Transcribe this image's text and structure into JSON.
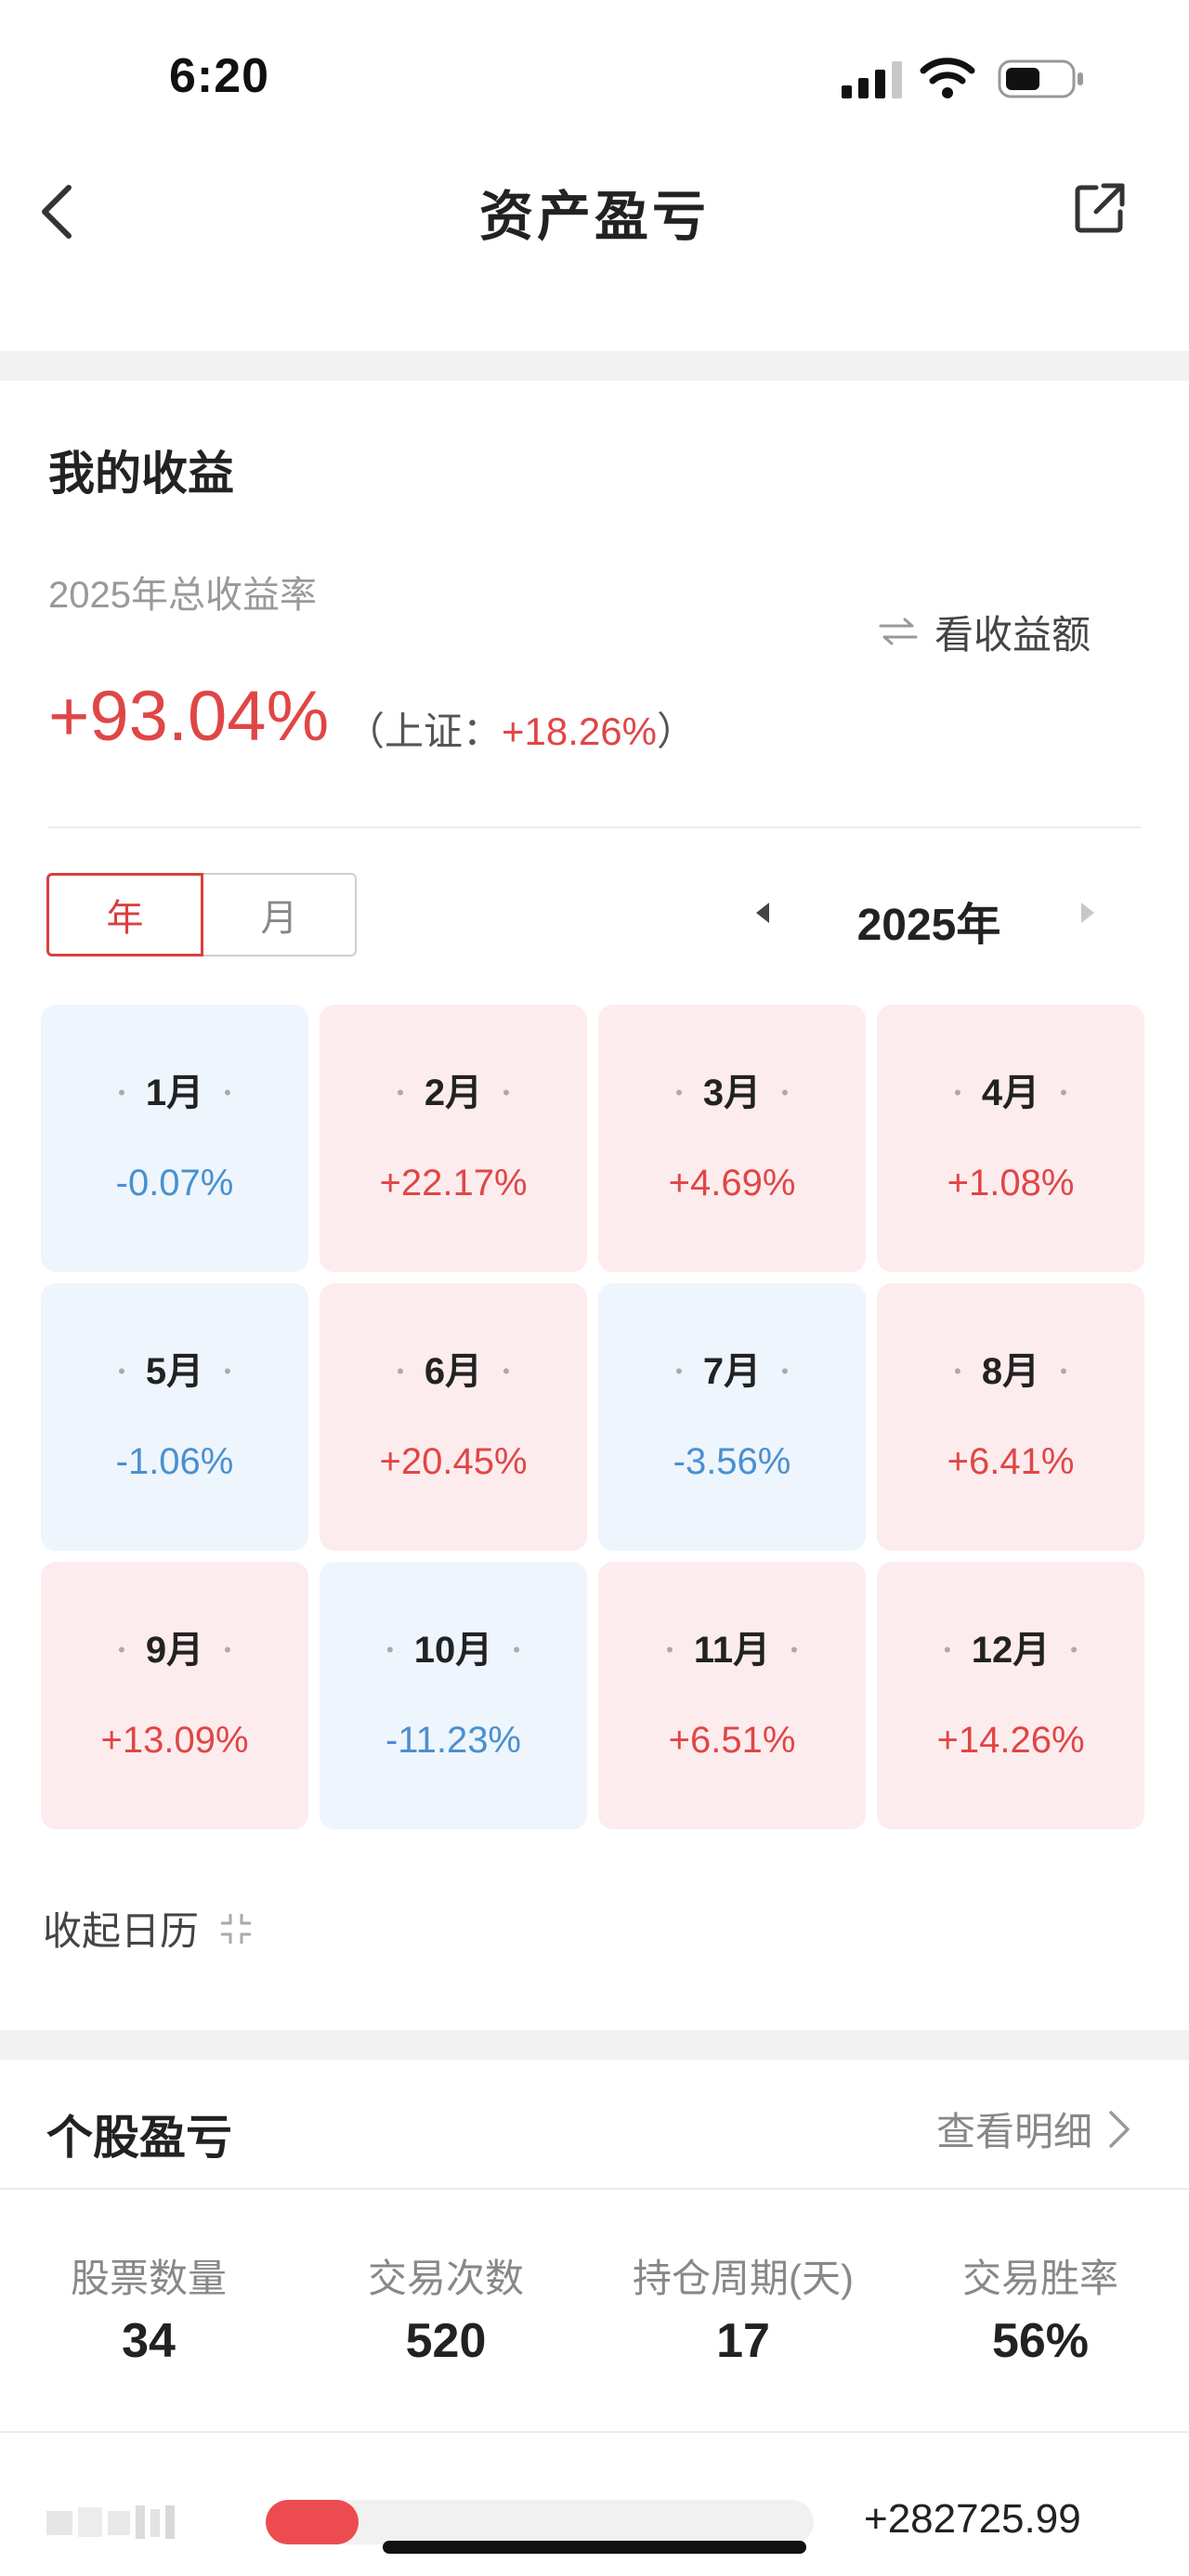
{
  "status_bar": {
    "time": "6:20"
  },
  "nav": {
    "title": "资产盈亏"
  },
  "earnings": {
    "title": "我的收益",
    "total_label": "2025年总收益率",
    "toggle_label": "看收益额",
    "total_rate": "+93.04%",
    "bench_open": "（上证：",
    "bench_value": "+18.26%",
    "bench_close": "）"
  },
  "segment": {
    "year_label": "年",
    "month_label": "月"
  },
  "year_nav": {
    "year": "2025年"
  },
  "months": [
    {
      "name": "1月",
      "value": "-0.07%",
      "trend": "down"
    },
    {
      "name": "2月",
      "value": "+22.17%",
      "trend": "up"
    },
    {
      "name": "3月",
      "value": "+4.69%",
      "trend": "up"
    },
    {
      "name": "4月",
      "value": "+1.08%",
      "trend": "up"
    },
    {
      "name": "5月",
      "value": "-1.06%",
      "trend": "down"
    },
    {
      "name": "6月",
      "value": "+20.45%",
      "trend": "up"
    },
    {
      "name": "7月",
      "value": "-3.56%",
      "trend": "down"
    },
    {
      "name": "8月",
      "value": "+6.41%",
      "trend": "up"
    },
    {
      "name": "9月",
      "value": "+13.09%",
      "trend": "up"
    },
    {
      "name": "10月",
      "value": "-11.23%",
      "trend": "down"
    },
    {
      "name": "11月",
      "value": "+6.51%",
      "trend": "up"
    },
    {
      "name": "12月",
      "value": "+14.26%",
      "trend": "up"
    }
  ],
  "collapse": {
    "label": "收起日历"
  },
  "stock": {
    "title": "个股盈亏",
    "detail_label": "查看明细",
    "stats": [
      {
        "label": "股票数量",
        "value": "34"
      },
      {
        "label": "交易次数",
        "value": "520"
      },
      {
        "label": "持仓周期(天)",
        "value": "17"
      },
      {
        "label": "交易胜率",
        "value": "56%"
      }
    ],
    "top_row": {
      "bar_fraction": 0.17,
      "profit": "+282725.99"
    }
  },
  "colors": {
    "up": "#e04646",
    "down": "#4a90cf",
    "up_bg": "#fdeced",
    "down_bg": "#eef5fd"
  }
}
